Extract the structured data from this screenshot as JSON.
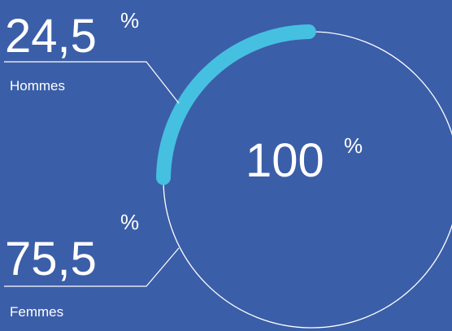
{
  "colors": {
    "background": "#3b5ea8",
    "accent": "#45c0e0",
    "line": "#ffffff"
  },
  "chart_data": {
    "type": "pie",
    "categories": [
      "Hommes",
      "Femmes"
    ],
    "values": [
      24.5,
      75.5
    ],
    "value_labels": [
      "24,5",
      "75,5"
    ],
    "unit": "%",
    "total_label": "100",
    "total_unit": "%",
    "legend": "left"
  }
}
